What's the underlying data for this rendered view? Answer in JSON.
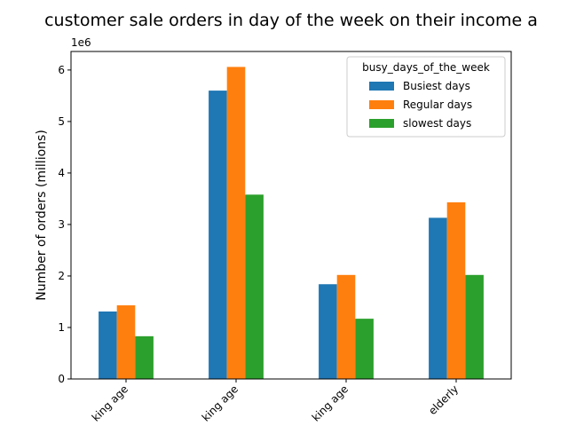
{
  "chart_data": {
    "type": "bar",
    "title": "customer sale orders in day of the week on their income a",
    "xlabel": "",
    "ylabel": "Number of orders (millions)",
    "scale_label": "1e6",
    "categories": [
      "king age",
      "king age",
      "king age",
      "elderly"
    ],
    "series": [
      {
        "name": "Busiest days",
        "color": "#1f77b4",
        "values": [
          1310000,
          5600000,
          1840000,
          3130000
        ]
      },
      {
        "name": "Regular days",
        "color": "#ff7f0e",
        "values": [
          1430000,
          6060000,
          2020000,
          3430000
        ]
      },
      {
        "name": "slowest days",
        "color": "#2ca02c",
        "values": [
          830000,
          3580000,
          1170000,
          2020000
        ]
      }
    ],
    "ylim": [
      0,
      6360000
    ],
    "yticks": [
      0,
      1,
      2,
      3,
      4,
      5,
      6
    ],
    "legend": {
      "title": "busy_days_of_the_week",
      "placement": "top-right"
    },
    "grid": false
  }
}
